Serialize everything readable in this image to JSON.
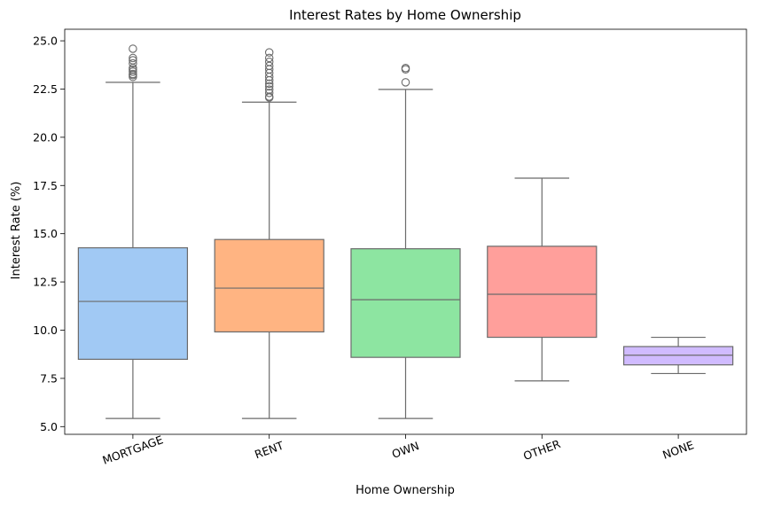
{
  "chart_data": {
    "type": "box",
    "title": "Interest Rates by Home Ownership",
    "xlabel": "Home Ownership",
    "ylabel": "Interest Rate (%)",
    "ylim": [
      4.6,
      25.6
    ],
    "yticks": [
      5.0,
      7.5,
      10.0,
      12.5,
      15.0,
      17.5,
      20.0,
      22.5,
      25.0
    ],
    "ytick_labels": [
      "5.0",
      "7.5",
      "10.0",
      "12.5",
      "15.0",
      "17.5",
      "20.0",
      "22.5",
      "25.0"
    ],
    "grid": false,
    "categories": [
      "MORTGAGE",
      "RENT",
      "OWN",
      "OTHER",
      "NONE"
    ],
    "boxes": [
      {
        "category": "MORTGAGE",
        "whisker_low": 5.42,
        "q1": 8.49,
        "median": 11.49,
        "q3": 14.27,
        "whisker_high": 22.85,
        "color": "#a1c9f4",
        "outliers": [
          23.13,
          23.22,
          23.28,
          23.4,
          23.5,
          23.59,
          23.83,
          23.99,
          24.11,
          24.59
        ]
      },
      {
        "category": "RENT",
        "whisker_low": 5.42,
        "q1": 9.91,
        "median": 12.18,
        "q3": 14.7,
        "whisker_high": 21.82,
        "color": "#ffb482",
        "outliers": [
          22.06,
          22.11,
          22.3,
          22.47,
          22.64,
          22.78,
          22.95,
          23.13,
          23.33,
          23.52,
          23.7,
          23.91,
          24.11,
          24.4
        ]
      },
      {
        "category": "OWN",
        "whisker_low": 5.42,
        "q1": 8.59,
        "median": 11.58,
        "q3": 14.22,
        "whisker_high": 22.48,
        "color": "#8de5a1",
        "outliers": [
          22.85,
          23.52,
          23.59
        ]
      },
      {
        "category": "OTHER",
        "whisker_low": 7.37,
        "q1": 9.63,
        "median": 11.86,
        "q3": 14.35,
        "whisker_high": 17.88,
        "color": "#ff9f9b",
        "outliers": []
      },
      {
        "category": "NONE",
        "whisker_low": 7.75,
        "q1": 8.2,
        "median": 8.7,
        "q3": 9.15,
        "whisker_high": 9.63,
        "color": "#d0bbff",
        "outliers": []
      }
    ]
  }
}
